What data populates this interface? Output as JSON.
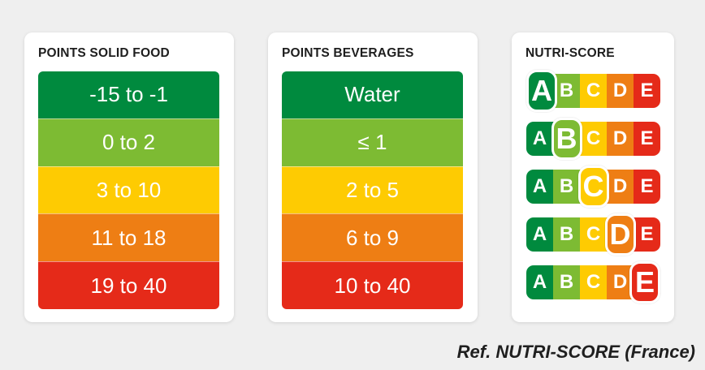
{
  "solid": {
    "title": "POINTS SOLID FOOD",
    "rows": [
      {
        "label": "-15 to -1",
        "color": "#008a3e"
      },
      {
        "label": "0 to 2",
        "color": "#7dbb33"
      },
      {
        "label": "3 to 10",
        "color": "#fecb02"
      },
      {
        "label": "11 to 18",
        "color": "#ee7e14"
      },
      {
        "label": "19 to 40",
        "color": "#e52a19"
      }
    ]
  },
  "beverages": {
    "title": "POINTS BEVERAGES",
    "rows": [
      {
        "label": "Water",
        "color": "#008a3e"
      },
      {
        "label": "≤ 1",
        "color": "#7dbb33"
      },
      {
        "label": "2 to 5",
        "color": "#fecb02"
      },
      {
        "label": "6 to 9",
        "color": "#ee7e14"
      },
      {
        "label": "10 to 40",
        "color": "#e52a19"
      }
    ]
  },
  "nutriscore": {
    "title": "NUTRI-SCORE",
    "letters": [
      "A",
      "B",
      "C",
      "D",
      "E"
    ],
    "colors": [
      "#008a3e",
      "#7dbb33",
      "#fecb02",
      "#ee7e14",
      "#e52a19"
    ]
  },
  "caption": "Ref. NUTRI-SCORE (France)"
}
